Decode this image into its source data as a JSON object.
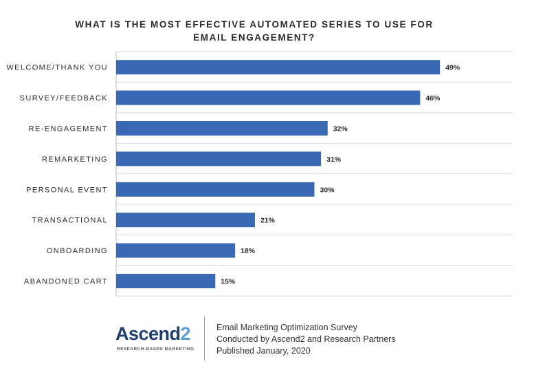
{
  "chart_data": {
    "type": "bar",
    "orientation": "horizontal",
    "title_lines": [
      "WHAT IS THE MOST EFFECTIVE AUTOMATED SERIES TO USE FOR",
      "EMAIL ENGAGEMENT?"
    ],
    "categories": [
      "WELCOME/THANK YOU",
      "SURVEY/FEEDBACK",
      "RE-ENGAGEMENT",
      "REMARKETING",
      "PERSONAL EVENT",
      "TRANSACTIONAL",
      "ONBOARDING",
      "ABANDONED CART"
    ],
    "values": [
      49,
      46,
      32,
      31,
      30,
      21,
      18,
      15
    ],
    "value_labels": [
      "49%",
      "46%",
      "32%",
      "31%",
      "30%",
      "21%",
      "18%",
      "15%"
    ],
    "xlim": [
      0,
      60
    ],
    "grid": true,
    "bar_color": "#3a68b3"
  },
  "footer": {
    "logo_text": "Ascend",
    "logo_number": "2",
    "logo_tagline": "RESEARCH-BASED MARKETING",
    "lines": [
      "Email Marketing Optimization Survey",
      "Conducted by Ascend2 and Research Partners",
      "Published January, 2020"
    ]
  }
}
